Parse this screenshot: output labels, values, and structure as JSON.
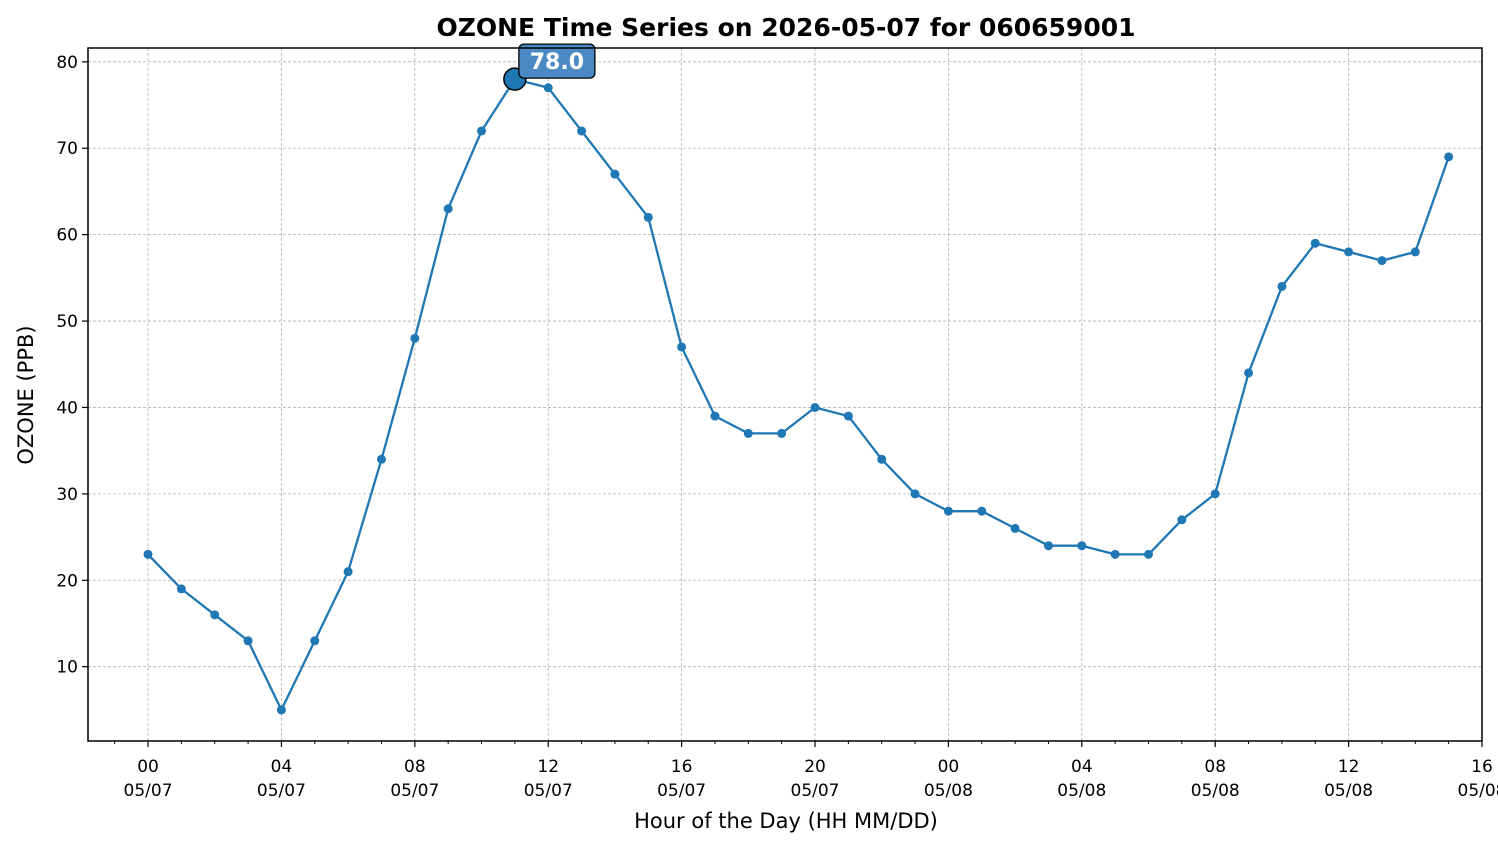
{
  "chart_data": {
    "type": "line",
    "title": "OZONE Time Series on 2026-05-07 for 060659001",
    "xlabel": "Hour of the Day (HH MM/DD)",
    "ylabel": "OZONE (PPB)",
    "ylim": [
      1.4,
      81.6
    ],
    "yticks": [
      10,
      20,
      30,
      40,
      50,
      60,
      70,
      80
    ],
    "xlim_hours": [
      -1.8,
      40.0
    ],
    "xticks": [
      {
        "hour": 0,
        "hh": "00",
        "date": "05/07"
      },
      {
        "hour": 4,
        "hh": "04",
        "date": "05/07"
      },
      {
        "hour": 8,
        "hh": "08",
        "date": "05/07"
      },
      {
        "hour": 12,
        "hh": "12",
        "date": "05/07"
      },
      {
        "hour": 16,
        "hh": "16",
        "date": "05/07"
      },
      {
        "hour": 20,
        "hh": "20",
        "date": "05/07"
      },
      {
        "hour": 24,
        "hh": "00",
        "date": "05/08"
      },
      {
        "hour": 28,
        "hh": "04",
        "date": "05/08"
      },
      {
        "hour": 32,
        "hh": "08",
        "date": "05/08"
      },
      {
        "hour": 36,
        "hh": "12",
        "date": "05/08"
      },
      {
        "hour": 40,
        "hh": "16",
        "date": "05/08"
      }
    ],
    "grid": true,
    "series": [
      {
        "color": "#1f77b4",
        "x_hours": [
          0,
          1,
          2,
          3,
          4,
          5,
          6,
          7,
          8,
          9,
          10,
          11,
          12,
          13,
          14,
          15,
          16,
          17,
          18,
          19,
          20,
          21,
          22,
          23,
          24,
          25,
          26,
          27,
          28,
          29,
          30,
          31,
          32,
          33,
          34,
          35,
          36,
          37,
          38,
          39
        ],
        "values": [
          23,
          19,
          16,
          13,
          5,
          13,
          21,
          34,
          48,
          63,
          72,
          78,
          77,
          72,
          67,
          62,
          47,
          39,
          37,
          37,
          40,
          39,
          34,
          30,
          28,
          28,
          26,
          24,
          24,
          23,
          23,
          27,
          30,
          44,
          54,
          59,
          58,
          57,
          58,
          69
        ]
      }
    ],
    "peak": {
      "hour": 11,
      "value": 78,
      "label": "78.0",
      "color": "#4a89c3"
    }
  }
}
